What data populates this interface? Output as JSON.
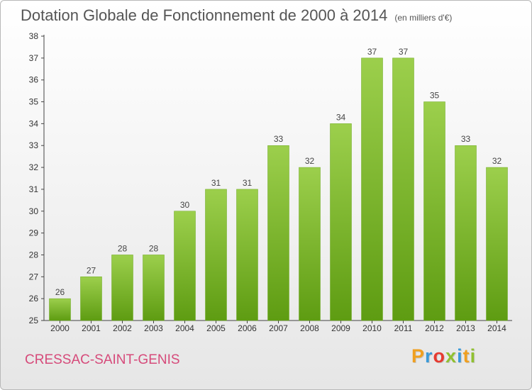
{
  "header": {
    "title": "Dotation Globale de Fonctionnement de 2000 à 2014",
    "subtitle": "(en milliers d'€)"
  },
  "footer": {
    "commune": "CRESSAC-SAINT-GENIS",
    "logo": "Proxiti"
  },
  "colors": {
    "bar_top": "#9ccf4c",
    "bar_bottom": "#5e9c12",
    "commune_text": "#d64a7a",
    "logo_letters": [
      "#f0a020",
      "#3a9ad9",
      "#e63a30",
      "#90c030",
      "#3a9ad9",
      "#f0a020",
      "#90c030"
    ]
  },
  "chart_data": {
    "type": "bar",
    "title": "Dotation Globale de Fonctionnement de 2000 à 2014",
    "subtitle": "(en milliers d'€)",
    "xlabel": "",
    "ylabel": "",
    "categories": [
      "2000",
      "2001",
      "2002",
      "2003",
      "2004",
      "2005",
      "2006",
      "2007",
      "2008",
      "2009",
      "2010",
      "2011",
      "2012",
      "2013",
      "2014"
    ],
    "values": [
      26,
      27,
      28,
      28,
      30,
      31,
      31,
      33,
      32,
      34,
      37,
      37,
      35,
      33,
      32
    ],
    "ylim": [
      25,
      38
    ],
    "yticks": [
      25,
      26,
      27,
      28,
      29,
      30,
      31,
      32,
      33,
      34,
      35,
      36,
      37,
      38
    ],
    "grid": false,
    "data_labels": true,
    "legend": "none"
  }
}
